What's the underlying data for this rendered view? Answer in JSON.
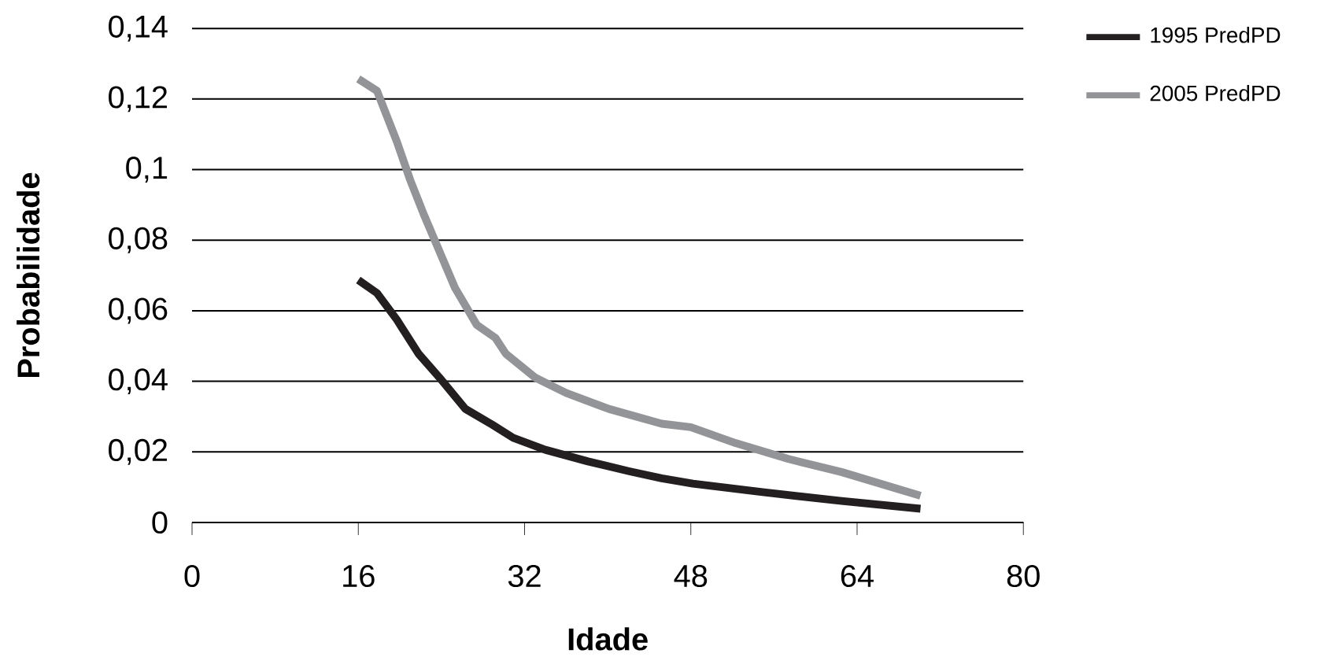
{
  "chart_data": {
    "type": "line",
    "xlabel": "Idade",
    "ylabel": "Probabilidade",
    "xlim": [
      0,
      80
    ],
    "xticks": [
      0,
      16,
      32,
      48,
      64,
      80
    ],
    "ylim": [
      0,
      0.14
    ],
    "yticks": [
      0,
      {
        "value": 0.02,
        "label": "0,02"
      },
      {
        "value": 0.04,
        "label": "0,04"
      },
      {
        "value": 0.06,
        "label": "0,06"
      },
      {
        "value": 0.08,
        "label": "0,08"
      },
      {
        "value": 0.1,
        "label": "0,1"
      },
      {
        "value": 0.12,
        "label": "0,12"
      },
      {
        "value": 0.14,
        "label": "0,14"
      }
    ],
    "grid": "y",
    "legend": "top right",
    "marker": "none",
    "line_style": "solid",
    "series": [
      {
        "name": "1995 PredPD",
        "color": "#231f20",
        "x": [
          16,
          17.8,
          19.7,
          21.8,
          23.8,
          26.3,
          28.9,
          30.9,
          34,
          38.1,
          42.1,
          45.2,
          48.2,
          54.9,
          62.5,
          70.1
        ],
        "values": [
          0.0687,
          0.065,
          0.0575,
          0.0478,
          0.0411,
          0.0322,
          0.0277,
          0.024,
          0.0206,
          0.0173,
          0.0145,
          0.0125,
          0.011,
          0.0086,
          0.0061,
          0.0039
        ]
      },
      {
        "name": "2005 PredPD",
        "color": "#929497",
        "x": [
          16,
          17.8,
          19.7,
          21,
          22.3,
          23.8,
          25.3,
          27.4,
          29.2,
          30.2,
          33,
          36,
          40.1,
          45.2,
          48,
          52.3,
          57.4,
          62.5,
          70.1
        ],
        "values": [
          0.1257,
          0.1223,
          0.108,
          0.097,
          0.0873,
          0.0769,
          0.0665,
          0.056,
          0.0523,
          0.0478,
          0.0411,
          0.0367,
          0.0322,
          0.028,
          0.027,
          0.0225,
          0.018,
          0.0143,
          0.0076
        ]
      }
    ]
  }
}
